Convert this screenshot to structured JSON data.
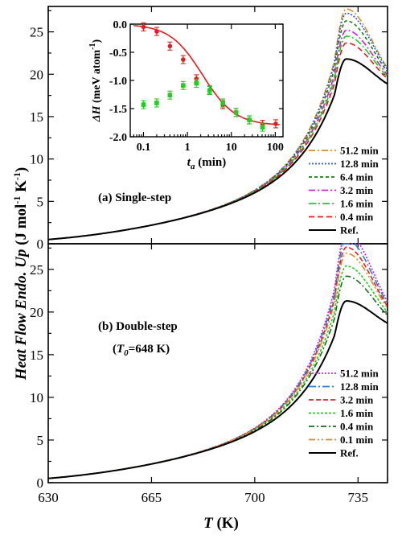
{
  "chart_data": [
    {
      "type": "line",
      "panel": "a",
      "annotation": "(a) Single-step",
      "xlabel": "T (K)",
      "ylabel": "Heat Flow Endo. Up (J mol-1 K-1)",
      "xlim": [
        630,
        745
      ],
      "ylim": [
        0,
        28
      ],
      "x_ticks": [
        630,
        665,
        700,
        735
      ],
      "y_ticks": [
        0,
        5,
        10,
        15,
        20,
        25
      ],
      "legend_position": "lower-right",
      "series": [
        {
          "name": "51.2 min",
          "color": "#e08a22",
          "dash": "8,3,2,3",
          "peak": 27.7
        },
        {
          "name": "12.8 min",
          "color": "#2a57c8",
          "dash": "2,2",
          "peak": 27.2
        },
        {
          "name": "6.4 min",
          "color": "#1a7a1a",
          "dash": "4,3",
          "peak": 26.3
        },
        {
          "name": "3.2 min",
          "color": "#d020d0",
          "dash": "8,3,2,3",
          "peak": 25.2
        },
        {
          "name": "1.6 min",
          "color": "#22cc22",
          "dash": "9,3,2,3",
          "peak": 24.5
        },
        {
          "name": "0.4 min",
          "color": "#e02020",
          "dash": "7,4",
          "peak": 23.7
        },
        {
          "name": "Ref.",
          "color": "#000000",
          "dash": "",
          "peak": 21.8
        }
      ]
    },
    {
      "type": "line",
      "panel": "b",
      "annotation": "(b) Double-step",
      "annotation2": "(T0=648 K)",
      "xlabel": "T (K)",
      "ylabel": "Heat Flow Endo. Up (J mol-1 K-1)",
      "xlim": [
        630,
        745
      ],
      "ylim": [
        0,
        28
      ],
      "x_ticks": [
        630,
        665,
        700,
        735
      ],
      "y_ticks": [
        0,
        5,
        10,
        15,
        20,
        25
      ],
      "legend_position": "lower-right",
      "series": [
        {
          "name": "51.2 min",
          "color": "#d020d0",
          "dash": "2,2",
          "peak": 29.3
        },
        {
          "name": "12.8 min",
          "color": "#2a80e0",
          "dash": "9,3,2,3",
          "peak": 28.5
        },
        {
          "name": "3.2 min",
          "color": "#e02020",
          "dash": "6,3",
          "peak": 27.6
        },
        {
          "name": "1.6 min",
          "color": "#22cc22",
          "dash": "3,2",
          "peak": 25.4
        },
        {
          "name": "0.4 min",
          "color": "#1a6a1a",
          "dash": "7,3,2,3",
          "peak": 24.2
        },
        {
          "name": "0.1 min",
          "color": "#e08a22",
          "dash": "8,3,2,3,2,3",
          "peak": 26.9
        },
        {
          "name": "Ref.",
          "color": "#000000",
          "dash": "",
          "peak": 21.3
        }
      ]
    },
    {
      "type": "scatter",
      "panel": "inset",
      "xlabel": "ta (min)",
      "ylabel": "ΔH (meV atom-1)",
      "xscale": "log",
      "xlim": [
        0.05,
        150
      ],
      "ylim": [
        -2.0,
        0.0
      ],
      "x_ticks": [
        0.1,
        1,
        10,
        100
      ],
      "x_tick_labels": [
        "0.1",
        "1",
        "10",
        "100"
      ],
      "y_ticks": [
        0.0,
        -0.5,
        -1.0,
        -1.5,
        -2.0
      ],
      "y_tick_labels": [
        "0.0",
        "-0.5",
        "-1.0",
        "-1.5",
        "-2.0"
      ],
      "series": [
        {
          "name": "single-step",
          "color": "#e02020",
          "x": [
            0.1,
            0.2,
            0.4,
            0.8,
            1.6,
            3.2,
            6.4,
            12.8,
            25.6,
            51.2,
            102.4
          ],
          "y": [
            -0.05,
            -0.13,
            -0.39,
            -0.63,
            -0.97,
            -1.17,
            -1.43,
            -1.57,
            -1.7,
            -1.78,
            -1.77
          ],
          "fit": true
        },
        {
          "name": "double-step",
          "color": "#22cc22",
          "x": [
            0.1,
            0.2,
            0.4,
            0.8,
            1.6,
            3.2,
            6.4,
            12.8,
            25.6,
            51.2
          ],
          "y": [
            -1.43,
            -1.4,
            -1.26,
            -1.09,
            -1.05,
            -1.18,
            -1.4,
            -1.57,
            -1.7,
            -1.83
          ]
        }
      ]
    }
  ]
}
